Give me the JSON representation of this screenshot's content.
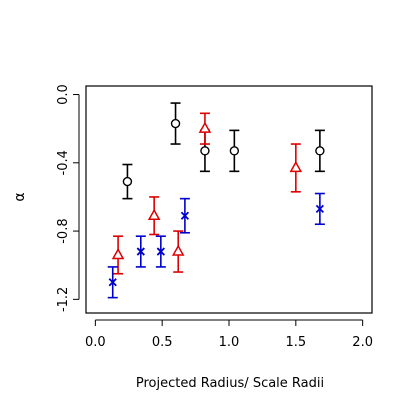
{
  "chart_data": {
    "type": "scatter",
    "title": "",
    "xlabel": "Projected Radius/ Scale Radii",
    "ylabel": "α",
    "xlim": [
      -0.07,
      2.07
    ],
    "ylim": [
      -1.28,
      0.05
    ],
    "x_ticks": [
      0.0,
      0.5,
      1.0,
      1.5,
      2.0
    ],
    "x_tick_labels": [
      "0.0",
      "0.5",
      "1.0",
      "1.5",
      "2.0"
    ],
    "y_ticks": [
      0.0,
      -0.4,
      -0.8,
      -1.2
    ],
    "y_tick_labels": [
      "0.0",
      "-0.4",
      "-0.8",
      "-1.2"
    ],
    "grid": false,
    "legend": "none",
    "series": [
      {
        "marker": "circle",
        "color": "#000000",
        "points": [
          {
            "x": 0.24,
            "y": -0.51,
            "err": 0.1
          },
          {
            "x": 0.6,
            "y": -0.17,
            "err": 0.12
          },
          {
            "x": 0.82,
            "y": -0.33,
            "err": 0.12
          },
          {
            "x": 1.04,
            "y": -0.33,
            "err": 0.12
          },
          {
            "x": 1.68,
            "y": -0.33,
            "err": 0.12
          }
        ]
      },
      {
        "marker": "triangle",
        "color": "#dd0000",
        "points": [
          {
            "x": 0.17,
            "y": -0.94,
            "err": 0.11
          },
          {
            "x": 0.44,
            "y": -0.71,
            "err": 0.11
          },
          {
            "x": 0.62,
            "y": -0.92,
            "err": 0.12
          },
          {
            "x": 0.82,
            "y": -0.2,
            "err": 0.09
          },
          {
            "x": 1.5,
            "y": -0.43,
            "err": 0.14
          }
        ]
      },
      {
        "marker": "cross",
        "color": "#0000cc",
        "points": [
          {
            "x": 0.13,
            "y": -1.1,
            "err": 0.09
          },
          {
            "x": 0.34,
            "y": -0.92,
            "err": 0.09
          },
          {
            "x": 0.49,
            "y": -0.92,
            "err": 0.09
          },
          {
            "x": 0.67,
            "y": -0.71,
            "err": 0.1
          },
          {
            "x": 1.68,
            "y": -0.67,
            "err": 0.09
          }
        ]
      }
    ]
  }
}
